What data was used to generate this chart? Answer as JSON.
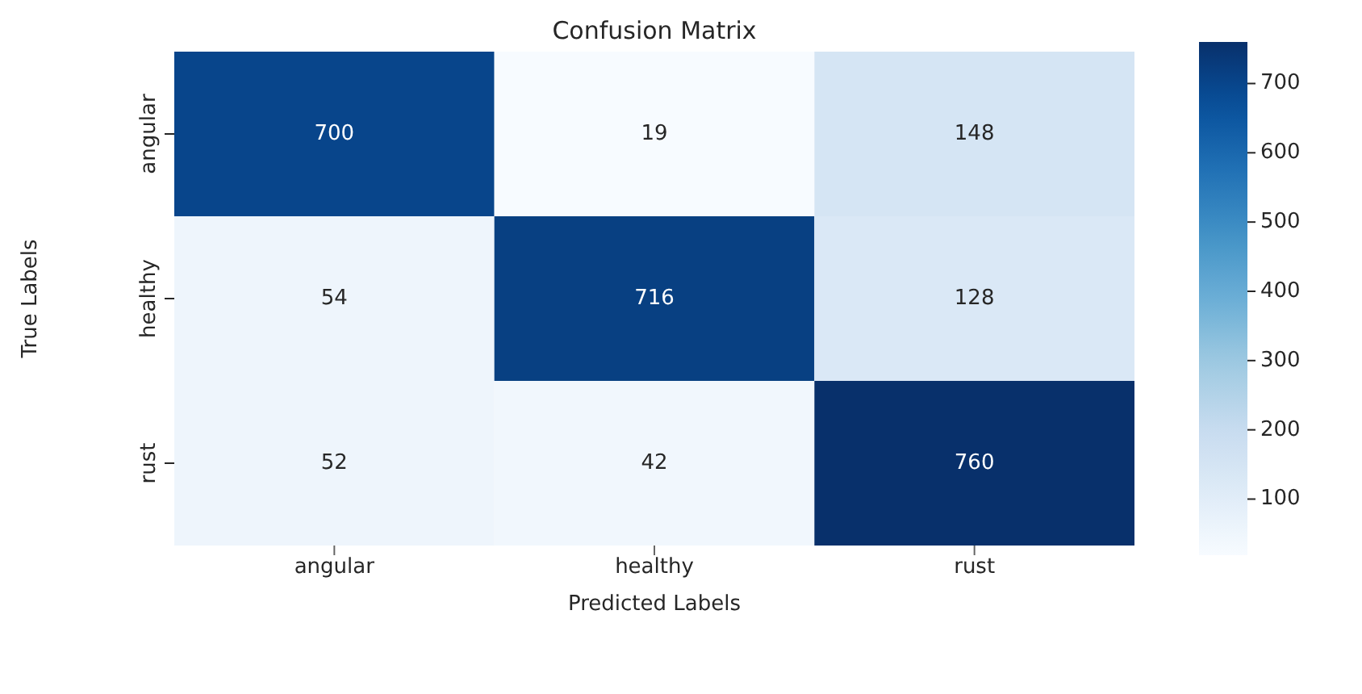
{
  "chart_data": {
    "type": "heatmap",
    "title": "Confusion Matrix",
    "xlabel": "Predicted Labels",
    "ylabel": "True Labels",
    "categories": [
      "angular",
      "healthy",
      "rust"
    ],
    "y_categories": [
      "angular",
      "healthy",
      "rust"
    ],
    "cells": [
      [
        700,
        19,
        148
      ],
      [
        54,
        716,
        128
      ],
      [
        52,
        42,
        760
      ]
    ],
    "clim": [
      19,
      760
    ],
    "cticks": [
      100,
      200,
      300,
      400,
      500,
      600,
      700
    ],
    "data_labels": true
  }
}
